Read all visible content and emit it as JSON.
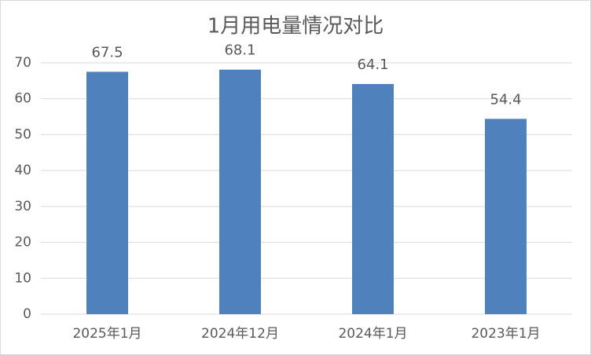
{
  "chart_data": {
    "type": "bar",
    "title": "1月用电量情况对比",
    "categories": [
      "2025年1月",
      "2024年12月",
      "2024年1月",
      "2023年1月"
    ],
    "values": [
      67.5,
      68.1,
      64.1,
      54.4
    ],
    "color": "#4f81bd",
    "ylim": [
      0,
      70
    ],
    "yticks": [
      0,
      10,
      20,
      30,
      40,
      50,
      60,
      70
    ],
    "grid": true
  }
}
